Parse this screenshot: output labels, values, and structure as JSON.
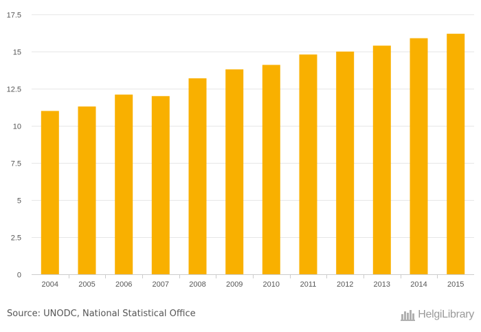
{
  "chart_data": {
    "type": "bar",
    "categories": [
      "2004",
      "2005",
      "2006",
      "2007",
      "2008",
      "2009",
      "2010",
      "2011",
      "2012",
      "2013",
      "2014",
      "2015"
    ],
    "values": [
      11.0,
      11.3,
      12.1,
      12.0,
      13.2,
      13.8,
      14.1,
      14.8,
      15.0,
      15.4,
      15.9,
      16.2
    ],
    "ylim": [
      0,
      17.5
    ],
    "yticks": [
      0,
      2.5,
      5,
      7.5,
      10,
      12.5,
      15,
      17.5
    ],
    "ytick_labels": [
      "0",
      "2.5",
      "5",
      "7.5",
      "10",
      "12.5",
      "15",
      "17.5"
    ],
    "bar_color": "#F9B000",
    "grid": true,
    "title": "",
    "xlabel": "",
    "ylabel": ""
  },
  "footer": {
    "source": "Source: UNODC, National Statistical Office",
    "brand": "HelgiLibrary",
    "brand_icon": "helgi-library-logo-icon"
  }
}
